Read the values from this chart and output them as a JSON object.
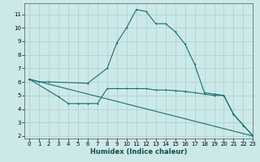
{
  "xlabel": "Humidex (Indice chaleur)",
  "bg_color": "#cce9e9",
  "grid_color": "#b0cccc",
  "line_color": "#1a6e6e",
  "xlim": [
    -0.5,
    23
  ],
  "ylim": [
    1.8,
    11.8
  ],
  "yticks": [
    2,
    3,
    4,
    5,
    6,
    7,
    8,
    9,
    10,
    11
  ],
  "xticks": [
    0,
    1,
    2,
    3,
    4,
    5,
    6,
    7,
    8,
    9,
    10,
    11,
    12,
    13,
    14,
    15,
    16,
    17,
    18,
    19,
    20,
    21,
    22,
    23
  ],
  "xtick_labels": [
    "0",
    "1",
    "2",
    "3",
    "4",
    "5",
    "6",
    "7",
    "8",
    "9",
    "10",
    "11",
    "12",
    "13",
    "14",
    "15",
    "16",
    "17",
    "18",
    "19",
    "20",
    "21",
    "22",
    "23"
  ],
  "curve1_x": [
    0,
    1,
    2,
    6,
    8,
    9,
    10,
    11,
    12,
    13,
    14,
    15,
    16,
    17,
    18,
    19,
    20,
    21,
    22,
    23
  ],
  "curve1_y": [
    6.2,
    6.0,
    6.0,
    5.9,
    7.0,
    8.9,
    10.0,
    11.35,
    11.2,
    10.3,
    10.3,
    9.7,
    8.8,
    7.3,
    5.2,
    5.1,
    5.0,
    3.6,
    2.8,
    2.0
  ],
  "curve2_x": [
    0,
    3,
    4,
    5,
    6,
    7,
    8,
    9,
    10,
    11,
    12,
    13,
    14,
    15,
    16,
    17,
    18,
    19,
    20,
    21,
    22,
    23
  ],
  "curve2_y": [
    6.2,
    4.9,
    4.4,
    4.4,
    4.4,
    4.4,
    5.5,
    5.5,
    5.5,
    5.5,
    5.5,
    5.4,
    5.4,
    5.35,
    5.3,
    5.2,
    5.1,
    5.0,
    5.0,
    3.6,
    2.8,
    2.0
  ],
  "curve3_x": [
    0,
    23
  ],
  "curve3_y": [
    6.2,
    2.0
  ],
  "xlabel_fontsize": 6,
  "tick_fontsize": 5
}
